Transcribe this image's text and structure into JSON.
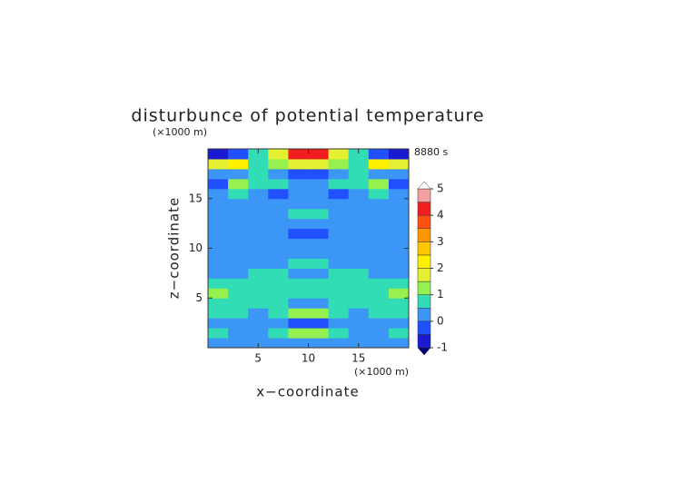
{
  "chart_data": {
    "type": "contour",
    "title": "disturbunce of potential temperature",
    "y_unit": "(×1000 m)",
    "x_unit": "(×1000 m)",
    "time_label": "8880 s",
    "xlabel": "x−coordinate",
    "ylabel": "z−coordinate",
    "xlim": [
      0,
      20
    ],
    "ylim": [
      0,
      20
    ],
    "xticks": [
      5,
      10,
      15
    ],
    "yticks": [
      5,
      10,
      15
    ],
    "x": [
      1,
      3,
      5,
      7,
      9,
      11,
      13,
      15,
      17,
      19
    ],
    "y": [
      0.5,
      1.5,
      2.5,
      3.5,
      4.5,
      5.5,
      6.5,
      7.5,
      8.5,
      9.5,
      10.5,
      11.5,
      12.5,
      13.5,
      14.5,
      15.5,
      16.5,
      17.5,
      18.5,
      19.5
    ],
    "z": [
      [
        0.3,
        0.3,
        0.3,
        0.3,
        0.3,
        0.3,
        0.3,
        0.3,
        0.3,
        0.3
      ],
      [
        0.8,
        0.3,
        0.3,
        0.8,
        1.2,
        1.2,
        0.8,
        0.3,
        0.3,
        0.8
      ],
      [
        0.3,
        0.3,
        0.3,
        0.3,
        -0.3,
        -0.3,
        0.3,
        0.3,
        0.3,
        0.3
      ],
      [
        0.8,
        0.8,
        0.3,
        0.8,
        1.3,
        1.3,
        0.8,
        0.3,
        0.8,
        0.8
      ],
      [
        0.8,
        0.8,
        0.8,
        0.8,
        0.3,
        0.3,
        0.8,
        0.8,
        0.8,
        0.8
      ],
      [
        1.2,
        0.8,
        0.8,
        0.8,
        0.8,
        0.8,
        0.8,
        0.8,
        0.8,
        1.2
      ],
      [
        0.8,
        0.8,
        0.8,
        0.8,
        0.8,
        0.8,
        0.8,
        0.8,
        0.8,
        0.8
      ],
      [
        0.3,
        0.3,
        0.8,
        0.8,
        0.3,
        0.3,
        0.8,
        0.8,
        0.3,
        0.3
      ],
      [
        0.3,
        0.3,
        0.3,
        0.3,
        0.8,
        0.8,
        0.3,
        0.3,
        0.3,
        0.3
      ],
      [
        0.3,
        0.3,
        0.3,
        0.3,
        0.3,
        0.3,
        0.3,
        0.3,
        0.3,
        0.3
      ],
      [
        0.3,
        0.3,
        0.3,
        0.3,
        0.3,
        0.3,
        0.3,
        0.3,
        0.3,
        0.3
      ],
      [
        0.3,
        0.3,
        0.3,
        0.3,
        -0.3,
        -0.3,
        0.3,
        0.3,
        0.3,
        0.3
      ],
      [
        0.3,
        0.3,
        0.3,
        0.3,
        0.3,
        0.3,
        0.3,
        0.3,
        0.3,
        0.3
      ],
      [
        0.3,
        0.3,
        0.3,
        0.3,
        0.8,
        0.8,
        0.3,
        0.3,
        0.3,
        0.3
      ],
      [
        0.3,
        0.3,
        0.3,
        0.3,
        0.3,
        0.3,
        0.3,
        0.3,
        0.3,
        0.3
      ],
      [
        0.3,
        0.8,
        0.3,
        -0.3,
        0.3,
        0.3,
        -0.3,
        0.3,
        0.8,
        0.3
      ],
      [
        -0.3,
        1.2,
        0.8,
        0.8,
        0.3,
        0.3,
        0.8,
        0.8,
        1.2,
        -0.3
      ],
      [
        0.3,
        0.3,
        0.8,
        0.3,
        -0.3,
        -0.3,
        0.3,
        0.8,
        0.3,
        0.3
      ],
      [
        1.8,
        2.2,
        0.8,
        1.2,
        1.8,
        1.8,
        1.2,
        0.8,
        2.2,
        1.8
      ],
      [
        -0.7,
        -0.3,
        0.8,
        1.8,
        4.2,
        4.2,
        1.8,
        0.8,
        -0.3,
        -0.7
      ]
    ],
    "levels": [
      -1,
      -0.5,
      0,
      0.5,
      1,
      1.5,
      2,
      2.5,
      3,
      3.5,
      4,
      4.5,
      5
    ],
    "colors": [
      "#1a1ad0",
      "#2050ff",
      "#3c96f5",
      "#32dcb4",
      "#96f050",
      "#e6f032",
      "#fff000",
      "#ffc800",
      "#ff9600",
      "#ff5014",
      "#f01e1e",
      "#f5a0a0"
    ],
    "under_color": "#000080",
    "over_color": "#ffffff",
    "cbar_ticks": [
      -1,
      0,
      1,
      2,
      3,
      4,
      5
    ]
  }
}
